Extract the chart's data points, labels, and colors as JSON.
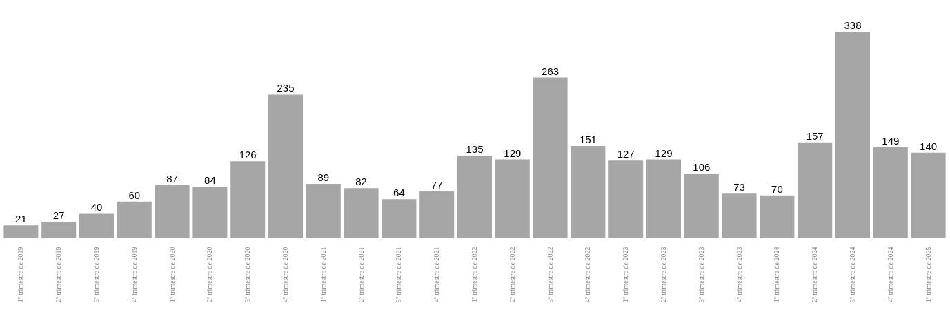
{
  "chart_data": {
    "type": "bar",
    "categories": [
      "1º trimestre de 2019",
      "2º trimestre de 2019",
      "3º trimestre de 2019",
      "4º trimestre de 2019",
      "1º trimestre de 2020",
      "2º trimestre de 2020",
      "3º trimestre de 2020",
      "4º trimestre de 2020",
      "1º trimestre de 2021",
      "2º trimestre de 2021",
      "3º trimestre de 2021",
      "4º trimestre de 2021",
      "1º trimestre de 2022",
      "2º trimestre de 2022",
      "3º trimestre de 2022",
      "4º trimestre de 2022",
      "1º trimestre de 2023",
      "2º trimestre de 2023",
      "3º trimestre de 2023",
      "4º trimestre de 2023",
      "1º trimestre de 2024",
      "2º trimestre de 2024",
      "3º trimestre de 2024",
      "4º trimestre de 2024",
      "1º trimestre de 2025"
    ],
    "values": [
      21,
      27,
      40,
      60,
      87,
      84,
      126,
      235,
      89,
      82,
      64,
      77,
      135,
      129,
      263,
      151,
      127,
      129,
      106,
      73,
      70,
      157,
      338,
      149,
      140
    ],
    "color": "#a6a6a6",
    "data_labels": true,
    "tick_labels": "x"
  }
}
